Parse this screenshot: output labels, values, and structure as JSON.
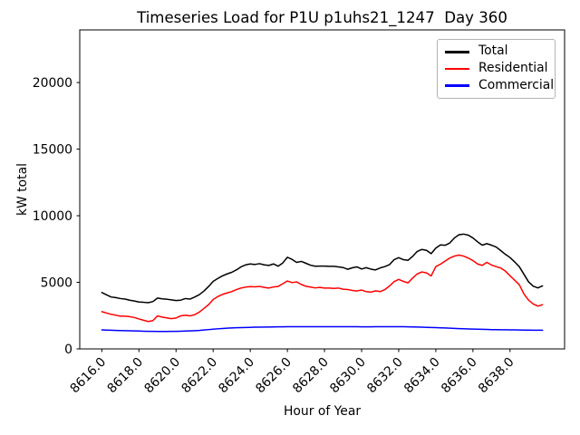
{
  "chart_data": {
    "type": "line",
    "title": "Timeseries Load for P1U p1uhs21_1247  Day 360",
    "xlabel": "Hour of Year",
    "ylabel": "kW total",
    "grid": false,
    "legend_position": "upper right",
    "xlim": [
      8614.81,
      8640.94
    ],
    "ylim": [
      0,
      23950
    ],
    "x_ticks": [
      8616,
      8618,
      8620,
      8622,
      8624,
      8626,
      8628,
      8630,
      8632,
      8634,
      8636,
      8638
    ],
    "x_tick_labels": [
      "8616.0",
      "8618.0",
      "8620.0",
      "8622.0",
      "8624.0",
      "8626.0",
      "8628.0",
      "8630.0",
      "8632.0",
      "8634.0",
      "8636.0",
      "8638.0"
    ],
    "y_ticks": [
      0,
      5000,
      10000,
      15000,
      20000
    ],
    "y_tick_labels": [
      "0",
      "5000",
      "10000",
      "15000",
      "20000"
    ],
    "x_start": 8616.0,
    "x_step": 0.25,
    "series": [
      {
        "name": "Total",
        "color": "#000000",
        "values": [
          4230,
          4060,
          3900,
          3850,
          3780,
          3740,
          3660,
          3600,
          3520,
          3500,
          3470,
          3550,
          3820,
          3760,
          3730,
          3680,
          3630,
          3660,
          3780,
          3740,
          3890,
          4070,
          4340,
          4680,
          5070,
          5290,
          5480,
          5630,
          5750,
          5930,
          6160,
          6310,
          6380,
          6340,
          6400,
          6310,
          6270,
          6380,
          6210,
          6450,
          6880,
          6720,
          6500,
          6570,
          6430,
          6280,
          6210,
          6220,
          6220,
          6200,
          6200,
          6160,
          6110,
          5980,
          6090,
          6160,
          6000,
          6100,
          5990,
          5930,
          6080,
          6180,
          6320,
          6700,
          6850,
          6700,
          6650,
          6950,
          7320,
          7470,
          7400,
          7150,
          7570,
          7810,
          7780,
          7950,
          8330,
          8570,
          8620,
          8540,
          8330,
          8040,
          7790,
          7900,
          7790,
          7650,
          7380,
          7100,
          6860,
          6530,
          6170,
          5600,
          5030,
          4710,
          4580,
          4730
        ]
      },
      {
        "name": "Residential",
        "color": "#ff0000",
        "values": [
          2800,
          2690,
          2600,
          2530,
          2460,
          2460,
          2420,
          2360,
          2250,
          2150,
          2060,
          2120,
          2480,
          2390,
          2330,
          2270,
          2320,
          2480,
          2530,
          2480,
          2570,
          2760,
          3030,
          3320,
          3710,
          3930,
          4090,
          4200,
          4300,
          4450,
          4570,
          4640,
          4680,
          4660,
          4690,
          4620,
          4570,
          4650,
          4690,
          4890,
          5100,
          4980,
          5030,
          4840,
          4700,
          4640,
          4580,
          4620,
          4570,
          4570,
          4540,
          4570,
          4480,
          4460,
          4390,
          4350,
          4420,
          4300,
          4260,
          4360,
          4300,
          4450,
          4720,
          5050,
          5220,
          5070,
          4960,
          5320,
          5630,
          5780,
          5710,
          5480,
          6180,
          6360,
          6590,
          6820,
          6970,
          7040,
          6970,
          6820,
          6630,
          6380,
          6270,
          6500,
          6300,
          6180,
          6070,
          5840,
          5490,
          5160,
          4820,
          4120,
          3660,
          3370,
          3210,
          3320
        ]
      },
      {
        "name": "Commercial",
        "color": "#0000ff",
        "values": [
          1430,
          1415,
          1400,
          1390,
          1380,
          1370,
          1360,
          1350,
          1340,
          1330,
          1320,
          1315,
          1310,
          1310,
          1310,
          1315,
          1320,
          1330,
          1340,
          1355,
          1370,
          1390,
          1420,
          1450,
          1480,
          1510,
          1535,
          1555,
          1575,
          1590,
          1600,
          1610,
          1620,
          1630,
          1635,
          1640,
          1645,
          1650,
          1655,
          1660,
          1665,
          1670,
          1670,
          1670,
          1670,
          1670,
          1670,
          1670,
          1670,
          1670,
          1670,
          1670,
          1670,
          1670,
          1665,
          1665,
          1660,
          1660,
          1660,
          1665,
          1670,
          1670,
          1670,
          1670,
          1670,
          1665,
          1660,
          1650,
          1640,
          1630,
          1620,
          1610,
          1600,
          1585,
          1570,
          1555,
          1540,
          1525,
          1510,
          1500,
          1490,
          1480,
          1470,
          1460,
          1450,
          1445,
          1440,
          1435,
          1430,
          1425,
          1420,
          1415,
          1410,
          1405,
          1400,
          1400
        ]
      }
    ]
  }
}
